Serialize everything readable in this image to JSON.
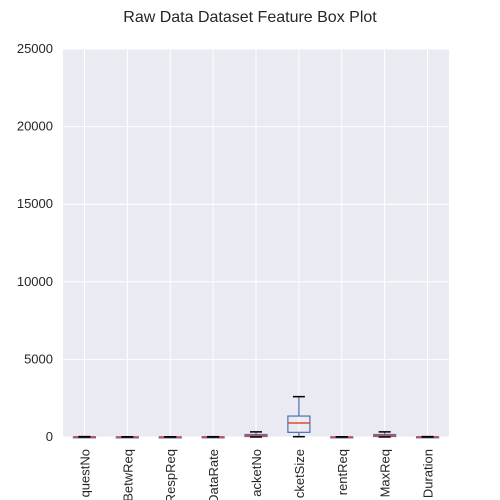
{
  "chart_data": {
    "type": "box",
    "title": "Raw Data Dataset Feature Box Plot",
    "ylim": [
      0,
      25000
    ],
    "yticks": [
      0,
      5000,
      10000,
      15000,
      20000,
      25000
    ],
    "categories": [
      "questNo",
      "BetwReq",
      "RespReq",
      "DataRate",
      "acketNo",
      "cketSize",
      "rentReq",
      "MaxReq",
      "Duration"
    ],
    "boxes": [
      {
        "min": 0,
        "q1": 2,
        "median": 5,
        "q3": 12,
        "max": 25
      },
      {
        "min": 0,
        "q1": 1,
        "median": 3,
        "q3": 8,
        "max": 15
      },
      {
        "min": 0,
        "q1": 1,
        "median": 2,
        "q3": 6,
        "max": 12
      },
      {
        "min": 0,
        "q1": 2,
        "median": 5,
        "q3": 10,
        "max": 20
      },
      {
        "min": 0,
        "q1": 30,
        "median": 80,
        "q3": 160,
        "max": 330
      },
      {
        "min": 20,
        "q1": 300,
        "median": 900,
        "q3": 1350,
        "max": 2600
      },
      {
        "min": 0,
        "q1": 1,
        "median": 3,
        "q3": 8,
        "max": 15
      },
      {
        "min": 0,
        "q1": 30,
        "median": 80,
        "q3": 160,
        "max": 330
      },
      {
        "min": 0,
        "q1": 2,
        "median": 5,
        "q3": 12,
        "max": 25
      }
    ],
    "grid": true,
    "colors": {
      "background": "#eaeaf2",
      "grid": "#ffffff",
      "box": "#4c72b0",
      "median": "#e24a33",
      "whisker": "#000000"
    }
  }
}
